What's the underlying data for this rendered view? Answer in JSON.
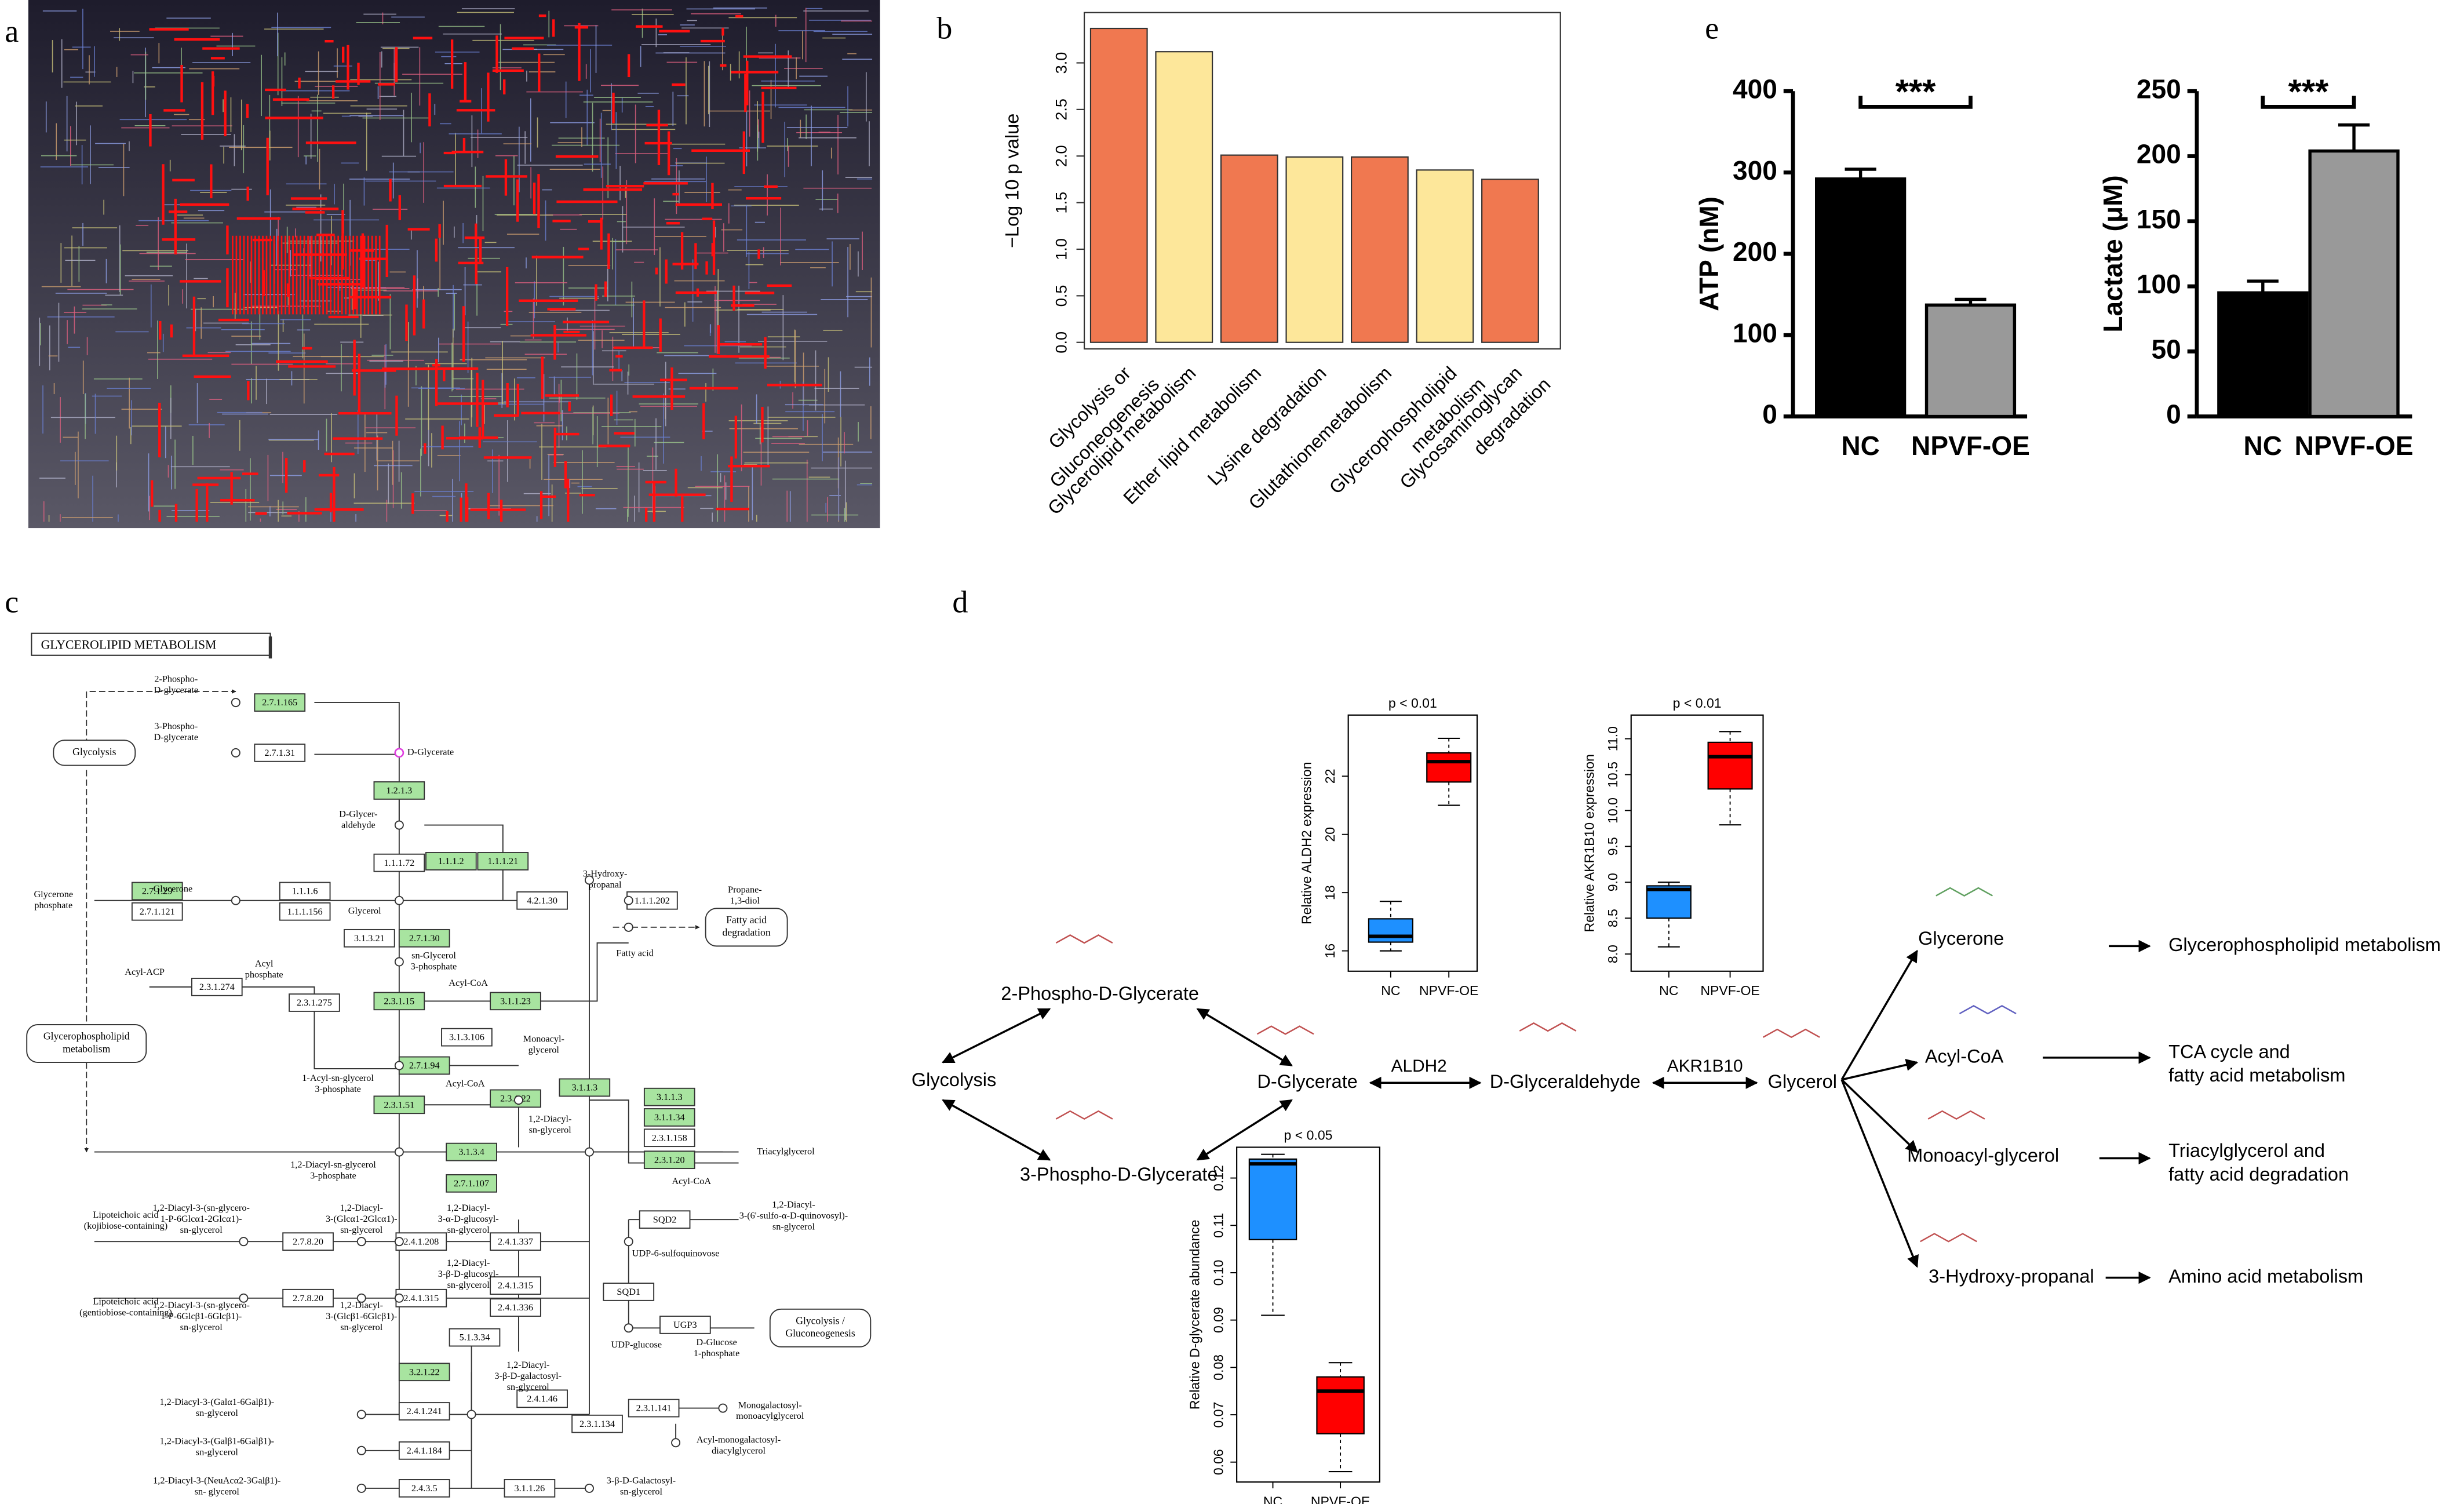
{
  "panel_labels": [
    "a",
    "b",
    "c",
    "d",
    "e"
  ],
  "chart_data": [
    {
      "type": "bar",
      "ylabel": "−Log 10 p value",
      "categories": [
        [
          "Glycolysis or",
          "Gluconeogenesis"
        ],
        [
          "Glycerolipid metabolism"
        ],
        [
          "Ether lipid metabolism"
        ],
        [
          "Lysine degradation"
        ],
        [
          "Glutathionemetabolism"
        ],
        [
          "Glycerophospholipid",
          "metabolism"
        ],
        [
          "Glycosaminoglycan",
          "degradation"
        ]
      ],
      "values": [
        3.37,
        3.12,
        2.01,
        1.99,
        1.99,
        1.85,
        1.75
      ],
      "colors": [
        "#f07850",
        "#fde79a",
        "#f07850",
        "#fde79a",
        "#f07850",
        "#fde79a",
        "#f07850"
      ],
      "ylim": [
        -0.07,
        3.54
      ],
      "yticks": [
        {
          "value": 0,
          "label": "0.0"
        },
        {
          "value": 0.5,
          "label": "0.5"
        },
        {
          "value": 1,
          "label": "1.0"
        },
        {
          "value": 1.5,
          "label": "1.5"
        },
        {
          "value": 2,
          "label": "2.0"
        },
        {
          "value": 2.5,
          "label": "2.5"
        },
        {
          "value": 3,
          "label": "3.0"
        }
      ]
    },
    {
      "type": "bar_error",
      "ylabel": "ATP (nM)",
      "categories": [
        "NC",
        "NPVF-OE"
      ],
      "values": [
        292,
        137
      ],
      "errors": [
        12,
        7
      ],
      "colors": [
        "#000000",
        "#999999"
      ],
      "ylim": [
        0,
        400
      ],
      "yticks": [
        0,
        100,
        200,
        300,
        400
      ],
      "significance": "***"
    },
    {
      "type": "bar_error",
      "ylabel": "Lactate (μM)",
      "categories": [
        "NC",
        "NPVF-OE"
      ],
      "values": [
        95,
        204
      ],
      "errors": [
        9,
        20
      ],
      "colors": [
        "#000000",
        "#999999"
      ],
      "ylim": [
        0,
        250
      ],
      "yticks": [
        0,
        50,
        100,
        150,
        200,
        250
      ],
      "significance": "***"
    },
    {
      "type": "box",
      "title": "p < 0.01",
      "ylabel": "Relative ALDH2 expression",
      "categories": [
        "NC",
        "NPVF-OE"
      ],
      "boxes": [
        {
          "min": 16.0,
          "q1": 16.3,
          "median": 16.5,
          "q3": 17.1,
          "max": 17.7
        },
        {
          "min": 21.0,
          "q1": 21.8,
          "median": 22.5,
          "q3": 22.8,
          "max": 23.3
        }
      ],
      "colors": [
        "#1e90ff",
        "#ff0000"
      ],
      "ylim": [
        15.3,
        24.1
      ],
      "yticks": [
        16,
        18,
        20,
        22
      ]
    },
    {
      "type": "box",
      "title": "p < 0.01",
      "ylabel": "Relative AKR1B10 expression",
      "categories": [
        "NC",
        "NPVF-OE"
      ],
      "boxes": [
        {
          "min": 8.1,
          "q1": 8.5,
          "median": 8.9,
          "q3": 8.95,
          "max": 9.0
        },
        {
          "min": 9.8,
          "q1": 10.3,
          "median": 10.75,
          "q3": 10.95,
          "max": 11.1
        }
      ],
      "colors": [
        "#1e90ff",
        "#ff0000"
      ],
      "ylim": [
        7.76,
        11.33
      ],
      "yticks": [
        {
          "value": 8,
          "label": "8.0"
        },
        8.5,
        {
          "value": 9,
          "label": "9.0"
        },
        9.5,
        {
          "value": 10,
          "label": "10.0"
        },
        10.5,
        {
          "value": 11,
          "label": "11.0"
        }
      ]
    },
    {
      "type": "box",
      "title": "p < 0.05",
      "ylabel": "Relative D-glycerate abundance",
      "categories": [
        "NC",
        "NPVF-OE"
      ],
      "boxes": [
        {
          "min": 0.091,
          "q1": 0.107,
          "median": 0.123,
          "q3": 0.124,
          "max": 0.125
        },
        {
          "min": 0.058,
          "q1": 0.066,
          "median": 0.075,
          "q3": 0.078,
          "max": 0.081
        }
      ],
      "colors": [
        "#1e90ff",
        "#ff0000"
      ],
      "ylim": [
        0.0558,
        0.1265
      ],
      "yticks": [
        0.06,
        0.07,
        0.08,
        0.09,
        {
          "value": 0.1,
          "label": "0.10"
        },
        0.11,
        0.12
      ]
    }
  ],
  "pathway_c": {
    "title": "GLYCEROLIPID METABOLISM",
    "enzymes": [
      "2.7.1.165",
      "2.7.1.31",
      "1.2.1.3",
      "1.1.1.72",
      "1.1.1.2",
      "1.1.1.21",
      "2.7.1.29",
      "2.7.1.121",
      "1.1.1.6",
      "1.1.1.156",
      "4.2.1.30",
      "1.1.1.202",
      "3.1.3.21",
      "2.7.1.30",
      "2.3.1.274",
      "2.3.1.275",
      "2.3.1.15",
      "3.1.1.23",
      "3.1.3.106",
      "2.7.1.94",
      "2.3.1.22",
      "3.1.1.3",
      "2.3.1.51",
      "3.1.1.3",
      "3.1.1.34",
      "2.3.1.158",
      "2.3.1.20",
      "3.1.3.4",
      "2.7.1.107",
      "SQD2",
      "2.4.1.337",
      "2.4.1.208",
      "2.7.8.20",
      "SQD1",
      "UGP3",
      "2.4.1.315",
      "2.4.1.315",
      "2.4.1.336",
      "2.7.8.20",
      "5.1.3.34",
      "3.2.1.22",
      "2.4.1.46",
      "2.3.1.141",
      "2.4.1.241",
      "2.3.1.134",
      "2.4.1.184",
      "2.4.3.5",
      "3.1.1.26"
    ],
    "highlighted": [
      true,
      false,
      true,
      false,
      true,
      true,
      true,
      false,
      false,
      false,
      false,
      false,
      false,
      true,
      false,
      false,
      true,
      true,
      false,
      true,
      true,
      true,
      true,
      true,
      true,
      false,
      true,
      true,
      true,
      false,
      false,
      false,
      false,
      false,
      false,
      false,
      false,
      false,
      false,
      false,
      true,
      false,
      false,
      false,
      false,
      false,
      false,
      false
    ],
    "modules": [
      [
        "Glycolysis"
      ],
      [
        "Glycerophospholipid",
        "metabolism"
      ],
      [
        "Fatty acid",
        "degradation"
      ],
      [
        "Glycolysis /",
        "Gluconeogenesis"
      ]
    ],
    "compounds": [
      [
        "2-Phospho-",
        "D-glycerate"
      ],
      [
        "3-Phospho-",
        "D-glycerate"
      ],
      [
        "D-Glycerate"
      ],
      [
        "D-Glycer-",
        "aldehyde"
      ],
      [
        "Glycerone"
      ],
      [
        "Glycerone",
        "phosphate"
      ],
      [
        "Glycerol"
      ],
      [
        "3-Hydroxy-",
        "propanal"
      ],
      [
        "Propane-",
        "1,3-diol"
      ],
      [
        "sn-Glycerol",
        "3-phosphate"
      ],
      [
        "Acyl-ACP"
      ],
      [
        "Acyl",
        "phosphate"
      ],
      [
        "Acyl-CoA"
      ],
      [
        "Fatty acid"
      ],
      [
        "Monoacyl-",
        "glycerol"
      ],
      [
        "1-Acyl-sn-glycerol",
        "3-phosphate"
      ],
      [
        "Acyl-CoA"
      ],
      [
        "1,2-Diacyl-",
        "sn-glycerol"
      ],
      [
        "Triacylglycerol"
      ],
      [
        "1,2-Diacyl-sn-glycerol",
        "3-phosphate"
      ],
      [
        "Acyl-CoA"
      ],
      [
        "1,2-Diacyl-",
        "3-(6'-sulfo-α-D-quinovosyl)-",
        "sn-glycerol"
      ],
      [
        "UDP-6-sulfoquinovose"
      ],
      [
        "UDP-glucose"
      ],
      [
        "D-Glucose",
        "1-phosphate"
      ],
      [
        "Lipoteichoic acid",
        "(kojibiose-containing)"
      ],
      [
        "1,2-Diacyl-3-(sn-glycero-",
        "1-P-6Glcα1-2Glcα1)-",
        "sn-glycerol"
      ],
      [
        "1,2-Diacyl-",
        "3-(Glcα1-2Glcα1)-",
        "sn-glycerol"
      ],
      [
        "1,2-Diacyl-",
        "3-α-D-glucosyl-",
        "sn-glycerol"
      ],
      [
        "1,2-Diacyl-",
        "3-β-D-glucosyl-",
        "sn-glycerol"
      ],
      [
        "Lipoteichoic acid",
        "(gentiobiose-containing)"
      ],
      [
        "1,2-Diacyl-3-(sn-glycero-",
        "1-P-6Glcβ1-6Glcβ1)-",
        "sn-glycerol"
      ],
      [
        "1,2-Diacyl-",
        "3-(Glcβ1-6Glcβ1)-",
        "sn-glycerol"
      ],
      [
        "1,2-Diacyl-",
        "3-β-D-galactosyl-",
        "sn-glycerol"
      ],
      [
        "Monogalactosyl-",
        "monoacylglycerol"
      ],
      [
        "Acyl-monogalactosyl-",
        "diacylglycerol"
      ],
      [
        "1,2-Diacyl-3-(Galα1-6Galβ1)-",
        "sn-glycerol"
      ],
      [
        "1,2-Diacyl-3-(Galβ1-6Galβ1)-",
        "sn-glycerol"
      ],
      [
        "1,2-Diacyl-3-(NeuAcα2-3Galβ1)-",
        "sn- glycerol"
      ],
      [
        "3-β-D-Galactosyl-",
        "sn-glycerol"
      ]
    ]
  },
  "pathway_d": {
    "nodes": [
      "2-Phospho-D-Glycerate",
      "Glycolysis",
      "3-Phospho-D-Glycerate",
      "D-Glycerate",
      "D-Glyceraldehyde",
      "Glycerol",
      "Glycerone",
      "Acyl-CoA",
      "Monoacyl-glycerol",
      "3-Hydroxy-propanal"
    ],
    "enzymes": [
      "ALDH2",
      "AKR1B10"
    ],
    "outcomes": [
      [
        "Glycerophospholipid metabolism"
      ],
      [
        "TCA cycle and",
        "fatty acid metabolism"
      ],
      [
        "Triacylglycerol and",
        "fatty acid degradation"
      ],
      [
        "Amino acid metabolism"
      ]
    ]
  }
}
